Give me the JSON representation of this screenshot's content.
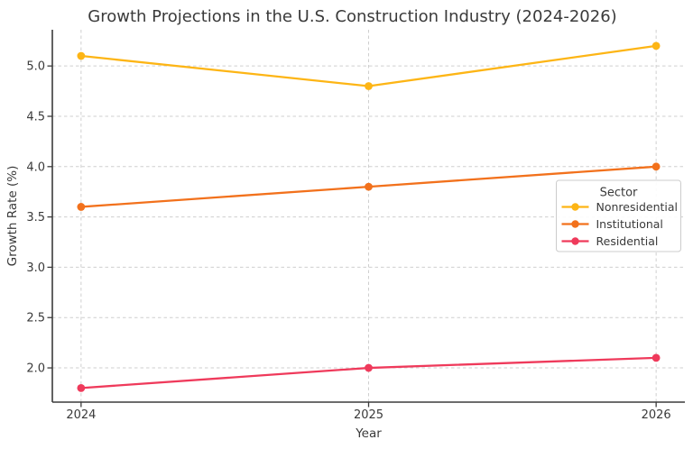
{
  "chart_data": {
    "type": "line",
    "title": "Growth Projections in the U.S. Construction Industry (2024-2026)",
    "xlabel": "Year",
    "ylabel": "Growth Rate (%)",
    "x": [
      2024,
      2025,
      2026
    ],
    "x_ticklabels": [
      "2024",
      "2025",
      "2026"
    ],
    "y_ticks": [
      2.0,
      2.5,
      3.0,
      3.5,
      4.0,
      4.5,
      5.0
    ],
    "y_ticklabels": [
      "2.0",
      "2.5",
      "3.0",
      "3.5",
      "4.0",
      "4.5",
      "5.0"
    ],
    "xlim": [
      2023.9,
      2026.1
    ],
    "ylim": [
      1.66,
      5.36
    ],
    "grid": true,
    "grid_style": "dashed",
    "legend": {
      "title": "Sector",
      "position": "right-center"
    },
    "series": [
      {
        "name": "Nonresidential",
        "color": "#FDB515",
        "values": [
          5.1,
          4.8,
          5.2
        ]
      },
      {
        "name": "Institutional",
        "color": "#F2711C",
        "values": [
          3.6,
          3.8,
          4.0
        ]
      },
      {
        "name": "Residential",
        "color": "#EF3A5B",
        "values": [
          1.8,
          2.0,
          2.1
        ]
      }
    ],
    "colors": {
      "background": "#FFFFFF",
      "grid": "#CFCFCF",
      "spine": "#3B3B3B",
      "text": "#3A3A3A",
      "legend_border": "#CCCCCC",
      "legend_background": "#FFFFFF"
    }
  }
}
